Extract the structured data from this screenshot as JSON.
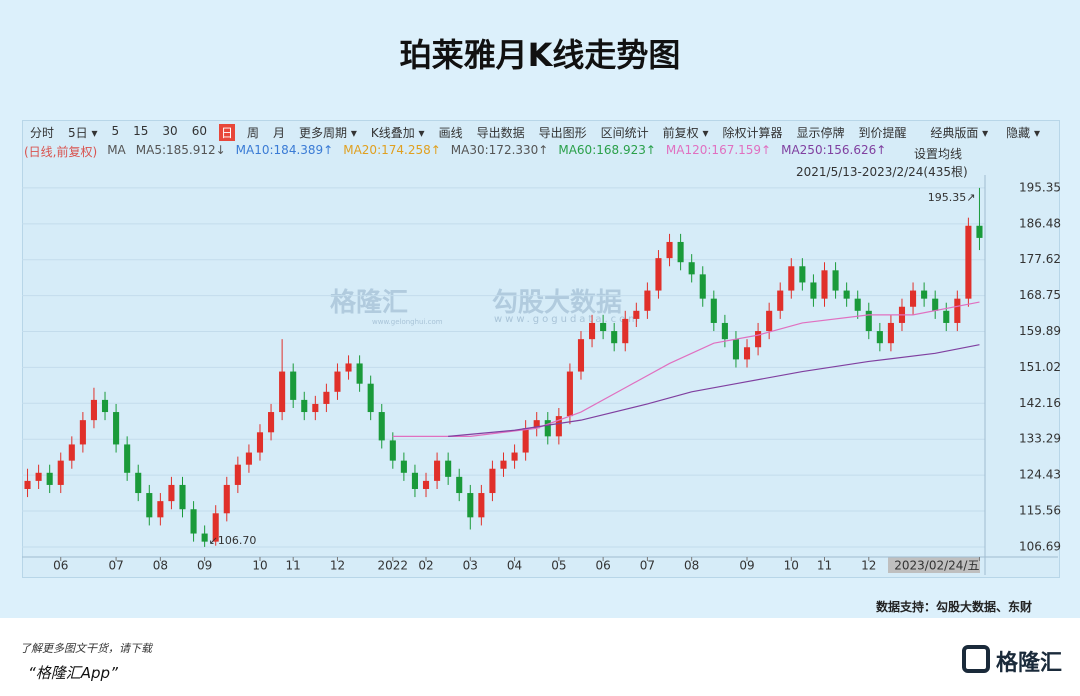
{
  "header": {
    "title": "珀莱雅月K线走势图"
  },
  "toolbar": {
    "items": [
      "分时",
      "5日 ▾",
      "5",
      "15",
      "30",
      "60",
      "日",
      "周",
      "月",
      "更多周期 ▾",
      "K线叠加 ▾",
      "画线",
      "导出数据",
      "导出图形",
      "区间统计",
      "前复权 ▾",
      "除权计算器",
      "显示停牌",
      "到价提醒"
    ],
    "active": 6,
    "right": [
      "经典版面 ▾",
      "隐藏 ▾"
    ]
  },
  "legend": {
    "items": [
      {
        "text": "(日线,前复权)",
        "color": "#d9534f"
      },
      {
        "text": "MA",
        "color": "#555555"
      },
      {
        "text": "MA5:185.912↓",
        "color": "#555555"
      },
      {
        "text": "MA10:184.389↑",
        "color": "#3a7bd5"
      },
      {
        "text": "MA20:174.258↑",
        "color": "#e0a020"
      },
      {
        "text": "MA30:172.330↑",
        "color": "#555555"
      },
      {
        "text": "MA60:168.923↑",
        "color": "#2aa04a"
      },
      {
        "text": "MA120:167.159↑",
        "color": "#e070c0"
      },
      {
        "text": "MA250:156.626↑",
        "color": "#8040a0"
      }
    ],
    "settings": "设置均线",
    "range": "2021/5/13-2023/2/24(435根)"
  },
  "chart_data": {
    "type": "candlestick",
    "up_color": "#e0302a",
    "down_color": "#1a9a3a",
    "candles": [
      [
        121,
        126,
        119,
        123
      ],
      [
        123,
        127,
        121,
        125
      ],
      [
        125,
        127,
        120,
        122
      ],
      [
        122,
        130,
        120,
        128
      ],
      [
        128,
        134,
        126,
        132
      ],
      [
        132,
        140,
        130,
        138
      ],
      [
        138,
        146,
        136,
        143
      ],
      [
        143,
        145,
        138,
        140
      ],
      [
        140,
        142,
        130,
        132
      ],
      [
        132,
        134,
        123,
        125
      ],
      [
        125,
        127,
        118,
        120
      ],
      [
        120,
        122,
        112,
        114
      ],
      [
        114,
        120,
        112,
        118
      ],
      [
        118,
        124,
        116,
        122
      ],
      [
        122,
        124,
        114,
        116
      ],
      [
        116,
        118,
        108,
        110
      ],
      [
        110,
        112,
        106.7,
        108
      ],
      [
        108,
        117,
        107,
        115
      ],
      [
        115,
        124,
        113,
        122
      ],
      [
        122,
        129,
        120,
        127
      ],
      [
        127,
        132,
        125,
        130
      ],
      [
        130,
        137,
        128,
        135
      ],
      [
        135,
        142,
        133,
        140
      ],
      [
        140,
        158,
        138,
        150
      ],
      [
        150,
        152,
        141,
        143
      ],
      [
        143,
        145,
        138,
        140
      ],
      [
        140,
        144,
        138,
        142
      ],
      [
        142,
        147,
        140,
        145
      ],
      [
        145,
        152,
        143,
        150
      ],
      [
        150,
        154,
        148,
        152
      ],
      [
        152,
        154,
        145,
        147
      ],
      [
        147,
        149,
        138,
        140
      ],
      [
        140,
        142,
        131,
        133
      ],
      [
        133,
        135,
        126,
        128
      ],
      [
        128,
        130,
        123,
        125
      ],
      [
        125,
        127,
        119,
        121
      ],
      [
        121,
        125,
        119,
        123
      ],
      [
        123,
        130,
        121,
        128
      ],
      [
        128,
        130,
        122,
        124
      ],
      [
        124,
        126,
        118,
        120
      ],
      [
        120,
        122,
        111,
        114
      ],
      [
        114,
        122,
        112,
        120
      ],
      [
        120,
        128,
        118,
        126
      ],
      [
        126,
        130,
        124,
        128
      ],
      [
        128,
        132,
        126,
        130
      ],
      [
        130,
        138,
        128,
        136
      ],
      [
        136,
        140,
        134,
        138
      ],
      [
        138,
        140,
        132,
        134
      ],
      [
        134,
        141,
        132,
        139
      ],
      [
        139,
        152,
        137,
        150
      ],
      [
        150,
        160,
        148,
        158
      ],
      [
        158,
        164,
        156,
        162
      ],
      [
        162,
        164,
        158,
        160
      ],
      [
        160,
        162,
        155,
        157
      ],
      [
        157,
        165,
        155,
        163
      ],
      [
        163,
        167,
        161,
        165
      ],
      [
        165,
        172,
        163,
        170
      ],
      [
        170,
        180,
        168,
        178
      ],
      [
        178,
        184,
        176,
        182
      ],
      [
        182,
        184,
        175,
        177
      ],
      [
        177,
        179,
        172,
        174
      ],
      [
        174,
        176,
        166,
        168
      ],
      [
        168,
        170,
        160,
        162
      ],
      [
        162,
        164,
        156,
        158
      ],
      [
        158,
        160,
        151,
        153
      ],
      [
        153,
        158,
        151,
        156
      ],
      [
        156,
        162,
        154,
        160
      ],
      [
        160,
        167,
        158,
        165
      ],
      [
        165,
        172,
        163,
        170
      ],
      [
        170,
        178,
        168,
        176
      ],
      [
        176,
        178,
        170,
        172
      ],
      [
        172,
        174,
        166,
        168
      ],
      [
        168,
        177,
        166,
        175
      ],
      [
        175,
        177,
        168,
        170
      ],
      [
        170,
        172,
        166,
        168
      ],
      [
        168,
        170,
        163,
        165
      ],
      [
        165,
        167,
        158,
        160
      ],
      [
        160,
        162,
        155,
        157
      ],
      [
        157,
        164,
        155,
        162
      ],
      [
        162,
        168,
        160,
        166
      ],
      [
        166,
        172,
        164,
        170
      ],
      [
        170,
        172,
        166,
        168
      ],
      [
        168,
        170,
        163,
        165
      ],
      [
        165,
        167,
        160,
        162
      ],
      [
        162,
        170,
        160,
        168
      ],
      [
        168,
        188,
        166,
        186
      ],
      [
        186,
        195.35,
        180,
        183
      ]
    ],
    "series": [
      {
        "name": "MA120",
        "color": "#e070c0",
        "x": [
          33,
          40,
          46,
          50,
          54,
          58,
          62,
          66,
          70,
          76,
          80,
          86
        ],
        "values": [
          134,
          134,
          136,
          140,
          146,
          152,
          157,
          159,
          162,
          164,
          164,
          167.159
        ]
      },
      {
        "name": "MA250",
        "color": "#8040a0",
        "x": [
          38,
          44,
          50,
          56,
          60,
          64,
          70,
          76,
          82,
          86
        ],
        "values": [
          134,
          135.5,
          138,
          142,
          145,
          147,
          150,
          152.5,
          154.5,
          156.626
        ]
      }
    ],
    "xlim": [
      -0.5,
      86.5
    ],
    "ylim": [
      104.7,
      197.3
    ],
    "yticks": [
      195.35,
      186.48,
      177.62,
      168.75,
      159.89,
      151.02,
      142.16,
      133.29,
      124.43,
      115.56,
      106.69
    ],
    "xticks": [
      {
        "value": 3,
        "label": "06"
      },
      {
        "value": 8,
        "label": "07"
      },
      {
        "value": 12,
        "label": "08"
      },
      {
        "value": 16,
        "label": "09"
      },
      {
        "value": 21,
        "label": "10"
      },
      {
        "value": 24,
        "label": "11"
      },
      {
        "value": 28,
        "label": "12"
      },
      {
        "value": 33,
        "label": "2022"
      },
      {
        "value": 36,
        "label": "02"
      },
      {
        "value": 40,
        "label": "03"
      },
      {
        "value": 44,
        "label": "04"
      },
      {
        "value": 48,
        "label": "05"
      },
      {
        "value": 52,
        "label": "06"
      },
      {
        "value": 56,
        "label": "07"
      },
      {
        "value": 60,
        "label": "08"
      },
      {
        "value": 65,
        "label": "09"
      },
      {
        "value": 69,
        "label": "10"
      },
      {
        "value": 72,
        "label": "11"
      },
      {
        "value": 76,
        "label": "12"
      },
      {
        "value": 86,
        "label": "2023/02/24/五"
      }
    ],
    "annotations": [
      {
        "text": "195.35↗",
        "x": 86,
        "y": 195.35
      },
      {
        "text": "↙106.70",
        "x": 16,
        "y": 106.7
      }
    ],
    "grid": true
  },
  "watermark": {
    "brand": "格隆汇",
    "brand_url": "www.gelonghui.com",
    "partner": "勾股大数据",
    "partner_url": "www.gogudata.com"
  },
  "footer": {
    "source": "数据支持：勾股大数据、东财",
    "promo": "了解更多图文干货，请下载",
    "app": "“格隆汇App”",
    "logo": "格隆汇"
  }
}
